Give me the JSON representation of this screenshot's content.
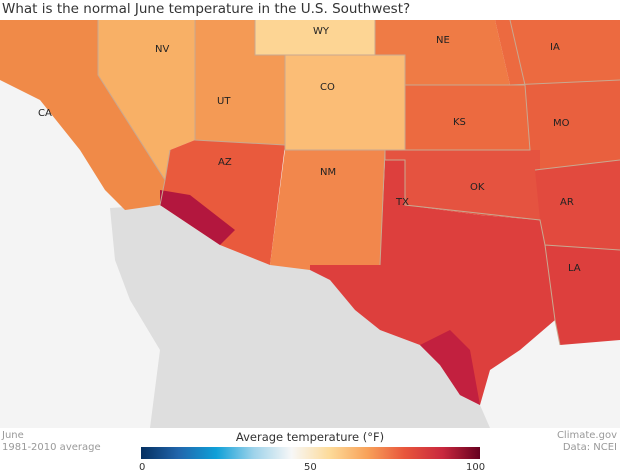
{
  "title": "What is the normal June temperature in the U.S. Southwest?",
  "map": {
    "states": [
      "NV",
      "WY",
      "NE",
      "IA",
      "CA",
      "UT",
      "CO",
      "KS",
      "MO",
      "AZ",
      "NM",
      "OK",
      "AR",
      "TX",
      "LA"
    ]
  },
  "footer": {
    "month": "June",
    "period": "1981-2010 average",
    "credit": "Climate.gov",
    "source": "Data: NCEI"
  },
  "legend": {
    "title": "Average temperature (°F)",
    "min": "0",
    "mid": "50",
    "max": "100",
    "colors": [
      "#053061",
      "#2166ac",
      "#0fa0d8",
      "#f7f7f7",
      "#fddb9a",
      "#f8a25a",
      "#e8563c",
      "#c9283e",
      "#67001f"
    ]
  }
}
